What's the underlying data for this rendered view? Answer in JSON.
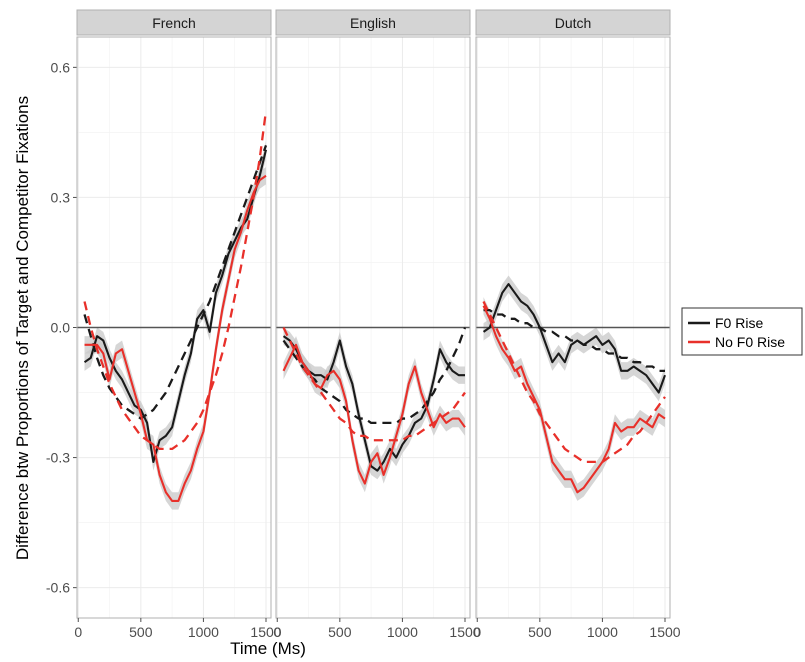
{
  "chart_data": {
    "type": "line",
    "xlabel": "Time (Ms)",
    "ylabel": "Difference btw Proportions of Target and Competitor Fixations",
    "xlim": [
      -10,
      1540
    ],
    "ylim": [
      -0.67,
      0.67
    ],
    "xticks": [
      0,
      500,
      1000,
      1500
    ],
    "xtick_labels": [
      "0",
      "500",
      "1000",
      "1500"
    ],
    "yticks": [
      -0.6,
      -0.3,
      0.0,
      0.3,
      0.6
    ],
    "ytick_labels": [
      "-0.6",
      "-0.3",
      "0.0",
      "0.3",
      "0.6"
    ],
    "grid": true,
    "reference_line_y": 0,
    "legend": {
      "position": "right",
      "entries": [
        {
          "label": "F0 Rise",
          "color": "#1a1a1a"
        },
        {
          "label": "No F0 Rise",
          "color": "#e8302a"
        }
      ]
    },
    "colors": {
      "f0_rise": "#1a1a1a",
      "no_f0_rise": "#e8302a",
      "ribbon": "#c8c8c8",
      "strip": "#d4d4d4"
    },
    "panels": [
      {
        "title": "French",
        "series": [
          {
            "name": "F0 Rise",
            "kind": "observed",
            "x": [
              50,
              100,
              150,
              200,
              250,
              300,
              350,
              400,
              450,
              500,
              550,
              600,
              650,
              700,
              750,
              800,
              850,
              900,
              950,
              1000,
              1050,
              1100,
              1150,
              1200,
              1250,
              1300,
              1350,
              1400,
              1450,
              1500
            ],
            "y": [
              -0.08,
              -0.07,
              -0.02,
              -0.03,
              -0.07,
              -0.1,
              -0.12,
              -0.15,
              -0.18,
              -0.19,
              -0.22,
              -0.31,
              -0.26,
              -0.25,
              -0.23,
              -0.17,
              -0.11,
              -0.06,
              0.02,
              0.04,
              -0.01,
              0.08,
              0.12,
              0.17,
              0.2,
              0.23,
              0.25,
              0.3,
              0.35,
              0.41
            ]
          },
          {
            "name": "F0 Rise",
            "kind": "fit",
            "x": [
              50,
              100,
              150,
              200,
              250,
              300,
              350,
              400,
              450,
              500,
              550,
              600,
              650,
              700,
              750,
              800,
              850,
              900,
              950,
              1000,
              1050,
              1100,
              1150,
              1200,
              1250,
              1300,
              1350,
              1400,
              1450,
              1500
            ],
            "y": [
              0.03,
              -0.02,
              -0.07,
              -0.11,
              -0.14,
              -0.16,
              -0.18,
              -0.19,
              -0.2,
              -0.21,
              -0.2,
              -0.19,
              -0.17,
              -0.15,
              -0.12,
              -0.09,
              -0.06,
              -0.03,
              0.0,
              0.03,
              0.06,
              0.1,
              0.14,
              0.18,
              0.22,
              0.26,
              0.3,
              0.34,
              0.38,
              0.42
            ]
          },
          {
            "name": "No F0 Rise",
            "kind": "observed",
            "x": [
              50,
              100,
              150,
              200,
              250,
              300,
              350,
              400,
              450,
              500,
              550,
              600,
              650,
              700,
              750,
              800,
              850,
              900,
              950,
              1000,
              1050,
              1100,
              1150,
              1200,
              1250,
              1300,
              1350,
              1400,
              1450,
              1500
            ],
            "y": [
              -0.04,
              -0.04,
              -0.04,
              -0.06,
              -0.12,
              -0.06,
              -0.05,
              -0.1,
              -0.15,
              -0.2,
              -0.26,
              -0.27,
              -0.34,
              -0.38,
              -0.4,
              -0.4,
              -0.36,
              -0.33,
              -0.28,
              -0.24,
              -0.15,
              -0.05,
              0.04,
              0.11,
              0.18,
              0.22,
              0.27,
              0.31,
              0.34,
              0.35
            ]
          },
          {
            "name": "No F0 Rise",
            "kind": "fit",
            "x": [
              50,
              100,
              150,
              200,
              250,
              300,
              350,
              400,
              450,
              500,
              550,
              600,
              650,
              700,
              750,
              800,
              850,
              900,
              950,
              1000,
              1050,
              1100,
              1150,
              1200,
              1250,
              1300,
              1350,
              1400,
              1450,
              1500
            ],
            "y": [
              0.06,
              0.0,
              -0.05,
              -0.09,
              -0.13,
              -0.16,
              -0.19,
              -0.21,
              -0.23,
              -0.25,
              -0.26,
              -0.27,
              -0.28,
              -0.28,
              -0.28,
              -0.27,
              -0.26,
              -0.24,
              -0.22,
              -0.19,
              -0.15,
              -0.11,
              -0.06,
              0.0,
              0.07,
              0.14,
              0.22,
              0.3,
              0.39,
              0.5
            ]
          }
        ]
      },
      {
        "title": "English",
        "series": [
          {
            "name": "F0 Rise",
            "kind": "observed",
            "x": [
              50,
              100,
              150,
              200,
              250,
              300,
              350,
              400,
              450,
              500,
              550,
              600,
              650,
              700,
              750,
              800,
              850,
              900,
              950,
              1000,
              1050,
              1100,
              1150,
              1200,
              1250,
              1300,
              1350,
              1400,
              1450,
              1500
            ],
            "y": [
              -0.02,
              -0.03,
              -0.05,
              -0.08,
              -0.1,
              -0.11,
              -0.11,
              -0.12,
              -0.08,
              -0.03,
              -0.09,
              -0.13,
              -0.2,
              -0.26,
              -0.32,
              -0.33,
              -0.31,
              -0.28,
              -0.3,
              -0.27,
              -0.25,
              -0.22,
              -0.21,
              -0.18,
              -0.12,
              -0.05,
              -0.08,
              -0.1,
              -0.11,
              -0.11
            ]
          },
          {
            "name": "F0 Rise",
            "kind": "fit",
            "x": [
              50,
              100,
              150,
              200,
              250,
              300,
              350,
              400,
              450,
              500,
              550,
              600,
              650,
              700,
              750,
              800,
              850,
              900,
              950,
              1000,
              1050,
              1100,
              1150,
              1200,
              1250,
              1300,
              1350,
              1400,
              1450,
              1500
            ],
            "y": [
              -0.03,
              -0.05,
              -0.07,
              -0.09,
              -0.11,
              -0.12,
              -0.14,
              -0.15,
              -0.16,
              -0.17,
              -0.19,
              -0.2,
              -0.21,
              -0.21,
              -0.22,
              -0.22,
              -0.22,
              -0.22,
              -0.22,
              -0.21,
              -0.21,
              -0.2,
              -0.19,
              -0.17,
              -0.15,
              -0.12,
              -0.1,
              -0.07,
              -0.04,
              0.0
            ]
          },
          {
            "name": "No F0 Rise",
            "kind": "observed",
            "x": [
              50,
              100,
              150,
              200,
              250,
              300,
              350,
              400,
              450,
              500,
              550,
              600,
              650,
              700,
              750,
              800,
              850,
              900,
              950,
              1000,
              1050,
              1100,
              1150,
              1200,
              1250,
              1300,
              1350,
              1400,
              1450,
              1500
            ],
            "y": [
              -0.1,
              -0.07,
              -0.04,
              -0.08,
              -0.1,
              -0.13,
              -0.14,
              -0.11,
              -0.1,
              -0.12,
              -0.17,
              -0.26,
              -0.33,
              -0.36,
              -0.31,
              -0.29,
              -0.34,
              -0.3,
              -0.25,
              -0.2,
              -0.13,
              -0.09,
              -0.15,
              -0.19,
              -0.23,
              -0.2,
              -0.22,
              -0.21,
              -0.21,
              -0.23
            ]
          },
          {
            "name": "No F0 Rise",
            "kind": "fit",
            "x": [
              50,
              100,
              150,
              200,
              250,
              300,
              350,
              400,
              450,
              500,
              550,
              600,
              650,
              700,
              750,
              800,
              850,
              900,
              950,
              1000,
              1050,
              1100,
              1150,
              1200,
              1250,
              1300,
              1350,
              1400,
              1450,
              1500
            ],
            "y": [
              0.0,
              -0.03,
              -0.06,
              -0.09,
              -0.11,
              -0.13,
              -0.15,
              -0.17,
              -0.19,
              -0.21,
              -0.22,
              -0.24,
              -0.25,
              -0.25,
              -0.26,
              -0.26,
              -0.26,
              -0.26,
              -0.26,
              -0.26,
              -0.25,
              -0.25,
              -0.24,
              -0.23,
              -0.22,
              -0.21,
              -0.2,
              -0.19,
              -0.17,
              -0.15
            ]
          }
        ]
      },
      {
        "title": "Dutch",
        "series": [
          {
            "name": "F0 Rise",
            "kind": "observed",
            "x": [
              50,
              100,
              150,
              200,
              250,
              300,
              350,
              400,
              450,
              500,
              550,
              600,
              650,
              700,
              750,
              800,
              850,
              900,
              950,
              1000,
              1050,
              1100,
              1150,
              1200,
              1250,
              1300,
              1350,
              1400,
              1450,
              1500
            ],
            "y": [
              -0.01,
              0.0,
              0.04,
              0.08,
              0.1,
              0.08,
              0.06,
              0.05,
              0.03,
              0.0,
              -0.04,
              -0.08,
              -0.06,
              -0.08,
              -0.04,
              -0.03,
              -0.04,
              -0.03,
              -0.02,
              -0.04,
              -0.03,
              -0.05,
              -0.1,
              -0.1,
              -0.09,
              -0.1,
              -0.11,
              -0.13,
              -0.15,
              -0.11
            ]
          },
          {
            "name": "F0 Rise",
            "kind": "fit",
            "x": [
              50,
              100,
              150,
              200,
              250,
              300,
              350,
              400,
              450,
              500,
              550,
              600,
              650,
              700,
              750,
              800,
              850,
              900,
              950,
              1000,
              1050,
              1100,
              1150,
              1200,
              1250,
              1300,
              1350,
              1400,
              1450,
              1500
            ],
            "y": [
              0.04,
              0.04,
              0.03,
              0.03,
              0.02,
              0.02,
              0.01,
              0.01,
              0.0,
              0.0,
              -0.01,
              -0.01,
              -0.02,
              -0.02,
              -0.03,
              -0.03,
              -0.04,
              -0.04,
              -0.05,
              -0.05,
              -0.06,
              -0.06,
              -0.07,
              -0.07,
              -0.08,
              -0.08,
              -0.09,
              -0.09,
              -0.1,
              -0.1
            ]
          },
          {
            "name": "No F0 Rise",
            "kind": "observed",
            "x": [
              50,
              100,
              150,
              200,
              250,
              300,
              350,
              400,
              450,
              500,
              550,
              600,
              650,
              700,
              750,
              800,
              850,
              900,
              950,
              1000,
              1050,
              1100,
              1150,
              1200,
              1250,
              1300,
              1350,
              1400,
              1450,
              1500
            ],
            "y": [
              0.05,
              0.02,
              -0.02,
              -0.05,
              -0.07,
              -0.1,
              -0.09,
              -0.13,
              -0.16,
              -0.19,
              -0.25,
              -0.31,
              -0.33,
              -0.35,
              -0.35,
              -0.38,
              -0.37,
              -0.35,
              -0.33,
              -0.31,
              -0.28,
              -0.22,
              -0.24,
              -0.23,
              -0.23,
              -0.21,
              -0.22,
              -0.23,
              -0.2,
              -0.21
            ]
          },
          {
            "name": "No F0 Rise",
            "kind": "fit",
            "x": [
              50,
              100,
              150,
              200,
              250,
              300,
              350,
              400,
              450,
              500,
              550,
              600,
              650,
              700,
              750,
              800,
              850,
              900,
              950,
              1000,
              1050,
              1100,
              1150,
              1200,
              1250,
              1300,
              1350,
              1400,
              1450,
              1500
            ],
            "y": [
              0.06,
              0.03,
              0.0,
              -0.03,
              -0.06,
              -0.09,
              -0.12,
              -0.15,
              -0.17,
              -0.2,
              -0.22,
              -0.24,
              -0.26,
              -0.28,
              -0.29,
              -0.3,
              -0.31,
              -0.31,
              -0.31,
              -0.31,
              -0.3,
              -0.29,
              -0.28,
              -0.27,
              -0.25,
              -0.24,
              -0.22,
              -0.2,
              -0.18,
              -0.16
            ]
          }
        ]
      }
    ]
  }
}
